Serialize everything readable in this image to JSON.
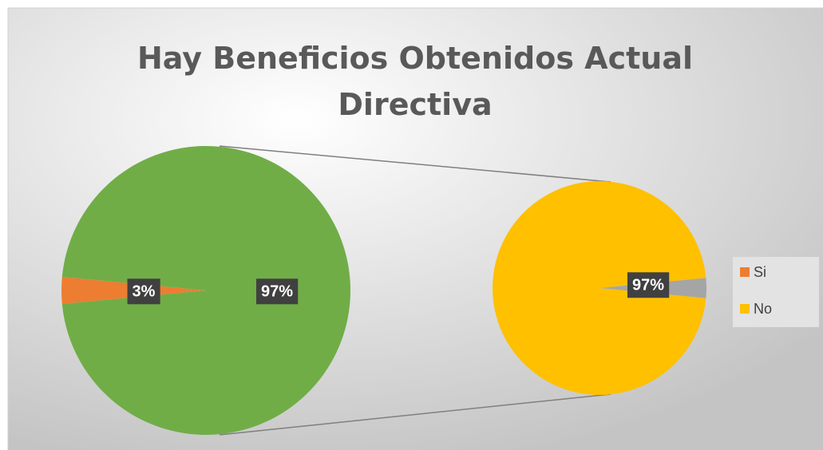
{
  "chart_data": {
    "type": "pie-of-pie",
    "title": "Hay Beneficios Obtenidos Actual Directiva",
    "main_pie": {
      "values": [
        3,
        97
      ],
      "value_labels": [
        "3%",
        "97%"
      ],
      "colors": [
        "#ed7d31",
        "#70ad47"
      ]
    },
    "secondary_pie": {
      "values": [
        97,
        3
      ],
      "value_labels": [
        "97%",
        null
      ],
      "colors": [
        "#ffc000",
        "#a5a5a5"
      ]
    },
    "legend": [
      {
        "name": "Si",
        "color": "#ed7d31"
      },
      {
        "name": "No",
        "color": "#ffc000"
      }
    ]
  }
}
